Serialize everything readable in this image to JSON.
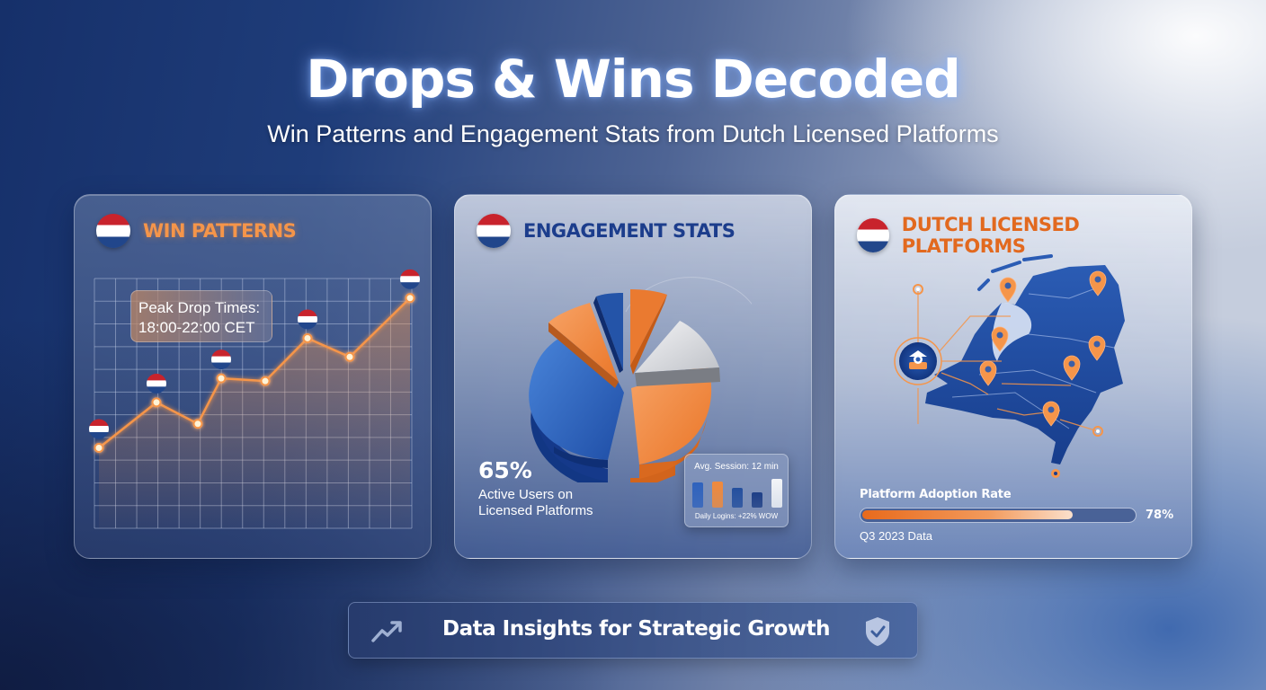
{
  "header": {
    "title": "Drops & Wins Decoded",
    "subtitle": "Win Patterns and Engagement Stats from Dutch Licensed Platforms"
  },
  "colors": {
    "accent_orange": "#f5954a",
    "brand_blue": "#1c3d8c",
    "flag_red": "#c8232c",
    "flag_white": "#ffffff",
    "flag_blue": "#21468b"
  },
  "cards": {
    "win_patterns": {
      "title": "WIN PATTERNS",
      "flag_icon": "netherlands-flag-icon",
      "tooltip_line1": "Peak Drop Times:",
      "tooltip_line2": "18:00-22:00 CET"
    },
    "engagement": {
      "title": "ENGAGEMENT STATS",
      "flag_icon": "netherlands-flag-icon",
      "big_value": "65%",
      "big_label_line1": "Active Users on",
      "big_label_line2": "Licensed Platforms",
      "mini_title": "Avg. Session: 12 min",
      "mini_footer": "Daily Logins: +22% WOW"
    },
    "platforms": {
      "title": "DUTCH LICENSED PLATFORMS",
      "flag_icon": "netherlands-flag-icon",
      "map_icon": "casino-chip-hub-icon",
      "pin_icon": "map-pin-icon",
      "adoption_label": "Platform Adoption Rate",
      "adoption_value": "78%",
      "adoption_percent": 78,
      "data_note": "Q3 2023 Data"
    }
  },
  "banner": {
    "text": "Data Insights for Strategic Growth",
    "left_icon": "trending-up-icon",
    "right_icon": "shield-check-icon"
  },
  "chart_data": [
    {
      "type": "line",
      "title": "WIN PATTERNS",
      "xlabel": "",
      "ylabel": "",
      "x": [
        1,
        2,
        3,
        4,
        5,
        6,
        7,
        8
      ],
      "series": [
        {
          "name": "Wins",
          "values": [
            2.4,
            4.1,
            3.3,
            5.0,
            4.9,
            6.5,
            5.8,
            8.0
          ],
          "color": "#f5954a"
        }
      ],
      "flag_markers_at_index": [
        0,
        1,
        3,
        5,
        7
      ],
      "annotation": "Peak Drop Times: 18:00-22:00 CET",
      "ylim": [
        0,
        9
      ],
      "grid": true,
      "legend": "none"
    },
    {
      "type": "pie",
      "title": "ENGAGEMENT STATS",
      "categories": [
        "Blue large",
        "Orange large",
        "Grey",
        "Orange small",
        "Blue small",
        "Orange mid"
      ],
      "values": [
        38,
        25,
        14,
        7,
        5,
        11
      ],
      "colors": [
        "#3a72c9",
        "#f08a3c",
        "#d8d9dc",
        "#e8742a",
        "#21468b",
        "#f59a55"
      ],
      "annotation": "65% Active Users on Licensed Platforms"
    },
    {
      "type": "bar",
      "title": "Avg. Session: 12 min",
      "categories": [
        "1",
        "2",
        "3",
        "4",
        "5"
      ],
      "values": [
        19,
        20,
        15,
        12,
        22
      ],
      "colors": [
        "#2f62bd",
        "#f08a3c",
        "#244f9e",
        "#1e3f86",
        "#f3f5f8"
      ],
      "xlabel": "Daily Logins: +22% WOW"
    },
    {
      "type": "bar",
      "title": "Platform Adoption Rate",
      "categories": [
        "Adoption"
      ],
      "values": [
        78
      ],
      "ylim": [
        0,
        100
      ],
      "xlabel": "Q3 2023 Data"
    }
  ]
}
